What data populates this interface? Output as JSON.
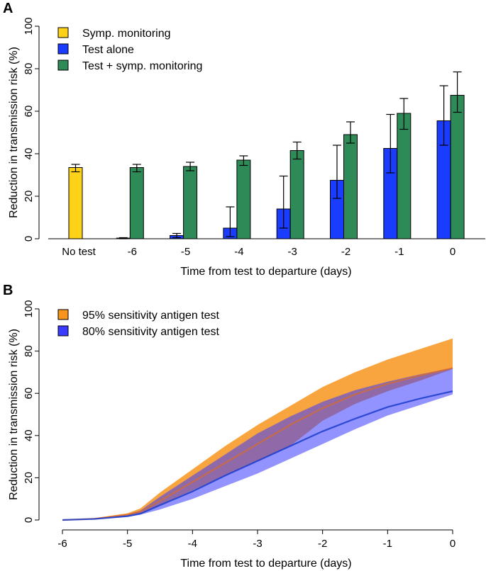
{
  "colors": {
    "symp": "#FFD21A",
    "test": "#1A3CFF",
    "combo": "#2E8B57",
    "orange": "#F7941D",
    "blue_band": "#3B3BFF",
    "blue_line": "#1A3CCC",
    "orange_line": "#E86A10"
  },
  "chart_data": [
    {
      "panel": "A",
      "type": "bar",
      "xlabel": "Time from test to departure (days)",
      "ylabel": "Reduction in transmission risk (%)",
      "ylim": [
        0,
        100
      ],
      "yticks": [
        0,
        20,
        40,
        60,
        80,
        100
      ],
      "categories": [
        "No test",
        "-6",
        "-5",
        "-4",
        "-3",
        "-2",
        "-1",
        "0"
      ],
      "legend_position": "top-left",
      "series": [
        {
          "name": "Symp. monitoring",
          "color_key": "symp",
          "values": [
            33.5,
            null,
            null,
            null,
            null,
            null,
            null,
            null
          ],
          "err_low": [
            31.5,
            null,
            null,
            null,
            null,
            null,
            null,
            null
          ],
          "err_high": [
            35,
            null,
            null,
            null,
            null,
            null,
            null,
            null
          ]
        },
        {
          "name": "Test alone",
          "color_key": "test",
          "values": [
            null,
            0.3,
            1.5,
            5,
            14,
            27.5,
            42.5,
            55.5
          ],
          "err_low": [
            null,
            0,
            0.5,
            1,
            5,
            19,
            31,
            44
          ],
          "err_high": [
            null,
            0.5,
            2.5,
            15,
            29.5,
            44,
            58.5,
            72
          ]
        },
        {
          "name": "Test + symp. monitoring",
          "color_key": "combo",
          "values": [
            null,
            33.5,
            34,
            37,
            41.5,
            49,
            59,
            67.5
          ],
          "err_low": [
            null,
            31.5,
            32,
            34.5,
            37.5,
            45,
            51.5,
            59.5
          ],
          "err_high": [
            null,
            35,
            36,
            39,
            45.5,
            55,
            66,
            78.5
          ]
        }
      ]
    },
    {
      "panel": "B",
      "type": "area",
      "xlabel": "Time from test to departure (days)",
      "ylabel": "Reduction in transmission risk (%)",
      "xlim": [
        -6,
        0
      ],
      "ylim": [
        0,
        100
      ],
      "xticks": [
        -6,
        -5,
        -4,
        -3,
        -2,
        -1,
        0
      ],
      "yticks": [
        0,
        20,
        40,
        60,
        80,
        100
      ],
      "legend_position": "top-left",
      "x": [
        -6,
        -5.5,
        -5,
        -4.8,
        -4.5,
        -4,
        -3.5,
        -3,
        -2.5,
        -2,
        -1.5,
        -1,
        -0.5,
        0
      ],
      "series": [
        {
          "name": "95% sensitivity antigen test",
          "color_key": "orange",
          "line_color_key": "orange_line",
          "mean": [
            0,
            0.6,
            2.5,
            4,
            9,
            18,
            27,
            36,
            45,
            53,
            59.5,
            64.5,
            68.5,
            72
          ],
          "lower": [
            0,
            0.5,
            2,
            3,
            7,
            14,
            21,
            28,
            35,
            47,
            55,
            61,
            66,
            71.5
          ],
          "upper": [
            0,
            0.9,
            3.2,
            5.5,
            13,
            24,
            35,
            45,
            54,
            63,
            70,
            76,
            81,
            86
          ]
        },
        {
          "name": "80% sensitivity antigen test",
          "color_key": "blue_band",
          "line_color_key": "blue_line",
          "mean": [
            0,
            0.5,
            1.8,
            3,
            7,
            13.5,
            21,
            28,
            35,
            42,
            48,
            53.5,
            57.5,
            61
          ],
          "lower": [
            0,
            0.4,
            1.5,
            2.5,
            5,
            10,
            16,
            22,
            29,
            36,
            43,
            49.5,
            54.5,
            59.5
          ],
          "upper": [
            0,
            0.7,
            2.6,
            4.5,
            11,
            21,
            31,
            41,
            49,
            56,
            61.5,
            65.5,
            69,
            72
          ]
        }
      ]
    }
  ]
}
